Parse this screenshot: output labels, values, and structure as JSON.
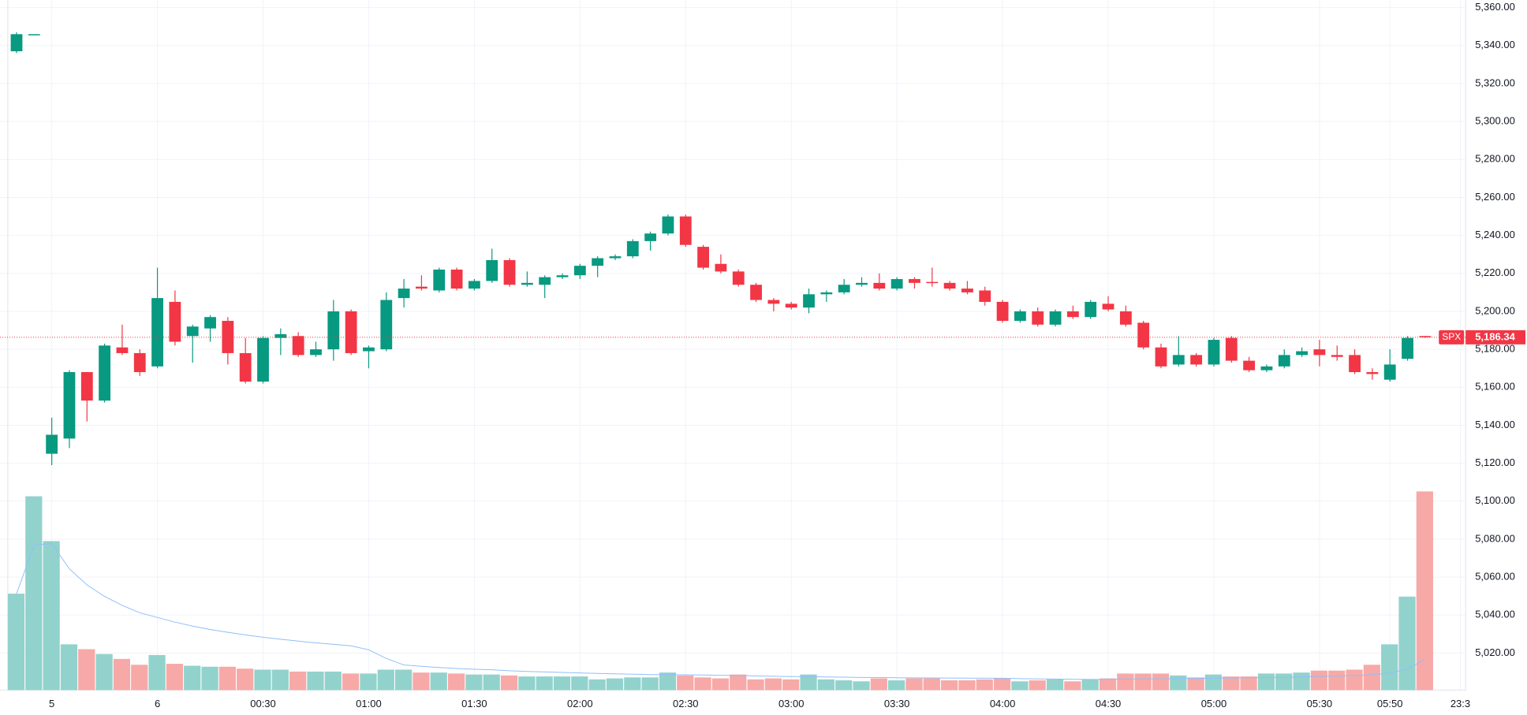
{
  "chart_data": {
    "type": "candlestick",
    "symbol": "SPX",
    "last_price": {
      "value": 5186.34,
      "label": "5,186.34"
    },
    "up_color": "#089981",
    "down_color": "#f23645",
    "volume_up_color": "#92d2cc",
    "volume_down_color": "#f7a9a7",
    "grid": true,
    "open": [
      5337,
      5346,
      5125,
      5133,
      5168,
      5153,
      5181,
      5178,
      5171,
      5205,
      5187,
      5191,
      5195,
      5178,
      5163,
      5186,
      5187,
      5177,
      5180,
      5200,
      5179,
      5180,
      5207,
      5213,
      5211,
      5222,
      5212,
      5216,
      5227,
      5214,
      5214,
      5218,
      5219,
      5224,
      5228,
      5229,
      5237,
      5241,
      5250,
      5234,
      5225,
      5221,
      5214,
      5206,
      5204,
      5202,
      5209,
      5210,
      5214,
      5215,
      5212,
      5217,
      5215.5,
      5215,
      5212,
      5211,
      5205,
      5195,
      5200,
      5193,
      5200,
      5197,
      5204,
      5200,
      5194,
      5181,
      5172,
      5177,
      5172,
      5186,
      5174,
      5169,
      5171,
      5177,
      5180,
      5177,
      5177,
      5168,
      5164,
      5175,
      5187
    ],
    "high": [
      5347,
      5346,
      5144,
      5169,
      5168,
      5183,
      5193,
      5180,
      5223,
      5211,
      5193,
      5198,
      5197,
      5186,
      5187,
      5191,
      5189,
      5184,
      5206,
      5201,
      5182,
      5210,
      5217,
      5219,
      5223,
      5223,
      5217,
      5233,
      5228,
      5221,
      5219,
      5220,
      5225,
      5229,
      5230,
      5238,
      5242,
      5251,
      5251,
      5235,
      5230,
      5222,
      5215,
      5207,
      5205,
      5212,
      5211,
      5217,
      5218,
      5220,
      5218,
      5218,
      5223,
      5216,
      5216,
      5213,
      5206,
      5201,
      5202,
      5201,
      5203,
      5206,
      5208,
      5203,
      5195,
      5183,
      5187,
      5178,
      5186,
      5187,
      5176,
      5172,
      5180,
      5181,
      5185,
      5182,
      5180,
      5170,
      5180,
      5187,
      5187
    ],
    "low": [
      5336,
      5346,
      5119,
      5128,
      5142,
      5152,
      5177,
      5166,
      5170,
      5182,
      5173,
      5184,
      5172,
      5162,
      5162,
      5177,
      5176,
      5176,
      5174,
      5177,
      5170,
      5179,
      5202,
      5211,
      5210,
      5211,
      5211,
      5215,
      5213,
      5213,
      5207,
      5217,
      5217,
      5218,
      5227,
      5228,
      5232,
      5240,
      5234,
      5222,
      5220,
      5213,
      5205,
      5200,
      5201,
      5199,
      5205,
      5209,
      5213,
      5211,
      5211,
      5212,
      5213,
      5211,
      5209,
      5203,
      5194,
      5194,
      5192,
      5192,
      5196,
      5196,
      5200,
      5192,
      5180,
      5170,
      5171,
      5171,
      5171,
      5173,
      5168,
      5168,
      5170,
      5176,
      5171,
      5174,
      5167,
      5164,
      5163,
      5174,
      5186
    ],
    "close": [
      5346,
      5346,
      5135,
      5168,
      5153,
      5182,
      5178,
      5168,
      5207,
      5184,
      5192,
      5197,
      5178,
      5163,
      5186,
      5188,
      5177,
      5180,
      5200,
      5178,
      5181,
      5206,
      5212,
      5212,
      5222,
      5212,
      5216,
      5227,
      5214,
      5215,
      5218,
      5219,
      5224,
      5228,
      5229,
      5237,
      5241,
      5250,
      5235,
      5223,
      5221,
      5214,
      5206,
      5204,
      5202,
      5209,
      5210,
      5214,
      5215,
      5212,
      5217,
      5215,
      5215,
      5212,
      5210,
      5205,
      5195,
      5200,
      5193,
      5200,
      5197,
      5205,
      5201,
      5193,
      5181,
      5171,
      5177,
      5172,
      5185,
      5174,
      5169,
      5171,
      5177,
      5179,
      5177,
      5176,
      5168,
      5167,
      5172,
      5186,
      5186.34
    ],
    "volume": [
      99,
      199,
      153,
      47,
      42,
      37,
      32,
      26,
      36,
      27,
      25,
      24,
      24,
      22,
      21,
      21,
      19,
      19,
      19,
      17,
      17,
      21,
      21,
      18,
      18,
      17,
      16,
      16,
      15,
      14,
      14,
      14,
      14,
      11,
      12,
      13,
      13,
      18,
      15,
      13,
      12,
      16,
      11,
      12,
      11,
      16,
      11,
      10,
      9,
      12,
      10,
      12,
      12,
      10,
      10,
      11,
      12,
      9,
      10,
      11,
      9,
      11,
      12,
      17,
      17,
      17,
      15,
      13,
      16,
      14,
      14,
      17,
      17,
      18,
      20,
      20,
      21,
      26,
      47,
      96,
      204
    ],
    "ylim": [
      5000,
      5364
    ],
    "yticks": [
      {
        "value": 5020,
        "label": "5,020.00"
      },
      {
        "value": 5040,
        "label": "5,040.00"
      },
      {
        "value": 5060,
        "label": "5,060.00"
      },
      {
        "value": 5080,
        "label": "5,080.00"
      },
      {
        "value": 5100,
        "label": "5,100.00"
      },
      {
        "value": 5120,
        "label": "5,120.00"
      },
      {
        "value": 5140,
        "label": "5,140.00"
      },
      {
        "value": 5160,
        "label": "5,160.00"
      },
      {
        "value": 5180,
        "label": "5,180.00"
      },
      {
        "value": 5200,
        "label": "5,200.00"
      },
      {
        "value": 5220,
        "label": "5,220.00"
      },
      {
        "value": 5240,
        "label": "5,240.00"
      },
      {
        "value": 5260,
        "label": "5,260.00"
      },
      {
        "value": 5280,
        "label": "5,280.00"
      },
      {
        "value": 5300,
        "label": "5,300.00"
      },
      {
        "value": 5320,
        "label": "5,320.00"
      },
      {
        "value": 5340,
        "label": "5,340.00"
      },
      {
        "value": 5360,
        "label": "5,360.00"
      }
    ],
    "xticks": [
      {
        "value": 2,
        "label": "5"
      },
      {
        "value": 8,
        "label": "6"
      },
      {
        "value": 14,
        "label": "00:30"
      },
      {
        "value": 20,
        "label": "01:00"
      },
      {
        "value": 26,
        "label": "01:30"
      },
      {
        "value": 32,
        "label": "02:00"
      },
      {
        "value": 38,
        "label": "02:30"
      },
      {
        "value": 44,
        "label": "03:00"
      },
      {
        "value": 50,
        "label": "03:30"
      },
      {
        "value": 56,
        "label": "04:00"
      },
      {
        "value": 62,
        "label": "04:30"
      },
      {
        "value": 68,
        "label": "05:00"
      },
      {
        "value": 74,
        "label": "05:30"
      },
      {
        "value": 78,
        "label": "05:50"
      },
      {
        "value": 82,
        "label": "23:3"
      }
    ]
  }
}
